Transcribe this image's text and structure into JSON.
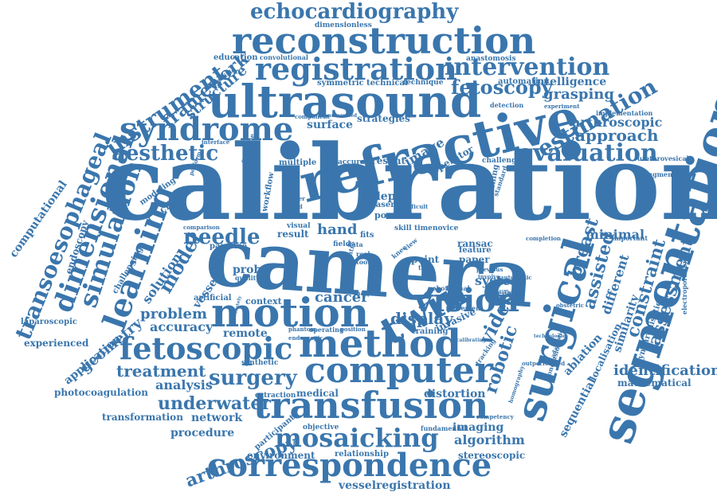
{
  "colors": {
    "text": "#3a76ad",
    "background": "#ffffff"
  },
  "words": [
    "calibration",
    "camera",
    "refractive",
    "ultrasound",
    "reconstruction",
    "registration",
    "echocardiography",
    "segmentation",
    "surgical",
    "syndrome",
    "motion",
    "method",
    "fetoscopic",
    "computer",
    "transfusion",
    "correspondence",
    "mosaicking",
    "twin",
    "vision",
    "intervention",
    "learning",
    "simulation",
    "dimensional",
    "transoesophageal",
    "instrument",
    "framework",
    "structure",
    "aesthetic",
    "estimation",
    "evaluation",
    "approach",
    "arthroscopic",
    "fetoscopy",
    "grasping",
    "intelligence",
    "automation",
    "needle",
    "model",
    "surgery",
    "underwater",
    "treatment",
    "analysis",
    "procedure",
    "network",
    "transformation",
    "photocoagulation",
    "arthroscopy",
    "environment",
    "relationship",
    "vesselregistration",
    "algorithm",
    "stereoscopic",
    "imaging",
    "robotic",
    "video",
    "breast",
    "assisted",
    "constraint",
    "assessment",
    "identification",
    "mathematical",
    "similarity",
    "synchronisation",
    "different",
    "minimal",
    "ablation",
    "localisation",
    "sequential",
    "distortion",
    "medical",
    "extraction",
    "display",
    "invasive",
    "cancer",
    "system",
    "remote",
    "problem",
    "accuracy",
    "geometry",
    "application",
    "experienced",
    "laparoscopic",
    "computational",
    "endoscopy",
    "challenging",
    "solution",
    "vessel",
    "artificial",
    "context",
    "probe",
    "image",
    "present",
    "surface",
    "strategies",
    "technical",
    "technique",
    "symmetric",
    "multiple",
    "accurate",
    "operator",
    "depth",
    "hand",
    "laser",
    "pose",
    "result",
    "visual",
    "workflow",
    "pairwise",
    "clinical",
    "modeling",
    "education",
    "convolutional",
    "dimensionless",
    "anastomosis",
    "detection",
    "experiment",
    "implementation",
    "challenge",
    "planning",
    "ransac",
    "feature",
    "paper",
    "point",
    "task",
    "skill",
    "time",
    "novice",
    "field",
    "data",
    "fits",
    "real",
    "tool",
    "knee",
    "view",
    "training",
    "quality",
    "objective",
    "participant",
    "fundamental",
    "competency",
    "homography",
    "conclusion",
    "adaptation",
    "obstetric",
    "electroporation",
    "important",
    "completion",
    "robot",
    "formal",
    "automatic",
    "estimate",
    "previous",
    "involve",
    "centre",
    "interface",
    "irreversible",
    "component",
    "automated",
    "standard",
    "augmented",
    "urethrovesical",
    "comparison",
    "higher",
    "based",
    "difficult",
    "movement",
    "tracking",
    "synthetic",
    "operating",
    "position",
    "phantom",
    "endoscopic",
    "outperformed",
    "matrix",
    "perform",
    "difficulty",
    "calibrating",
    "outcome",
    "accurately",
    "technologies"
  ]
}
